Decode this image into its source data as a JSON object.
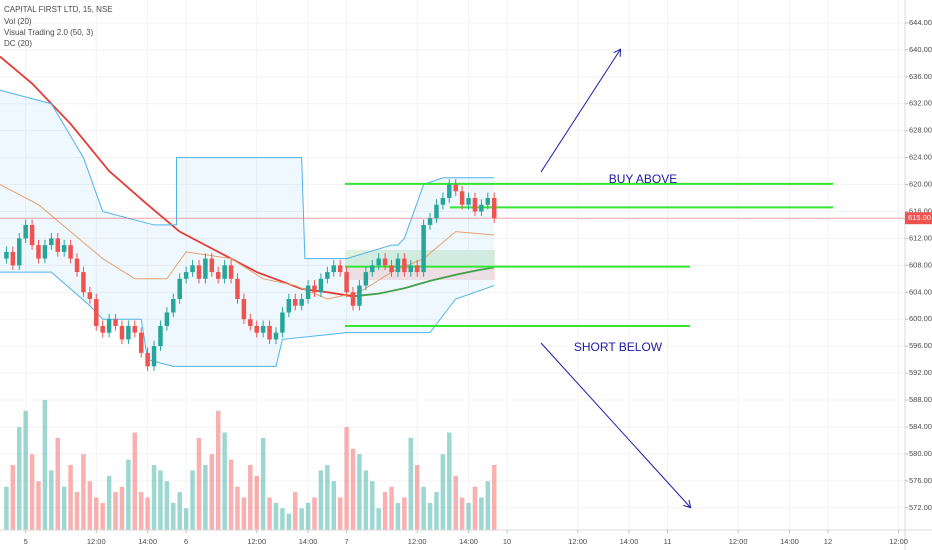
{
  "chart_data": {
    "type": "candlestick",
    "title": "CAPITAL FIRST LTD, 15, NSE",
    "indicators": [
      "Vol (20)",
      "Visual Trading 2.0 (50, 3)",
      "DC (20)"
    ],
    "annotations": [
      "BUY ABOVE",
      "SHORT BELOW"
    ],
    "up_color": "#26a69a",
    "down_color": "#ef5350",
    "ylim": [
      568.7,
      647.4
    ],
    "yticks": [
      {
        "value": 572,
        "label": "572.00"
      },
      {
        "value": 576,
        "label": "576.00"
      },
      {
        "value": 580,
        "label": "580.00"
      },
      {
        "value": 584,
        "label": "584.00"
      },
      {
        "value": 588,
        "label": "588.00"
      },
      {
        "value": 592,
        "label": "592.00"
      },
      {
        "value": 596,
        "label": "596.00"
      },
      {
        "value": 600,
        "label": "600.00"
      },
      {
        "value": 604,
        "label": "604.00"
      },
      {
        "value": 608,
        "label": "608.00"
      },
      {
        "value": 612,
        "label": "612.00"
      },
      {
        "value": 616,
        "label": "616.00"
      },
      {
        "value": 620,
        "label": "620.00"
      },
      {
        "value": 624,
        "label": "624.00"
      },
      {
        "value": 628,
        "label": "628.00"
      },
      {
        "value": 632,
        "label": "632.00"
      },
      {
        "value": 636,
        "label": "636.00"
      },
      {
        "value": 640,
        "label": "640.00"
      },
      {
        "value": 644,
        "label": "644.00"
      }
    ],
    "xlim": [
      -1,
      140
    ],
    "xticks": [
      {
        "value": 3,
        "label": "5"
      },
      {
        "value": 14,
        "label": "12:00"
      },
      {
        "value": 22,
        "label": "14:00"
      },
      {
        "value": 28,
        "label": "6"
      },
      {
        "value": 39,
        "label": "12:00"
      },
      {
        "value": 47,
        "label": "14:00"
      },
      {
        "value": 53,
        "label": "7"
      },
      {
        "value": 64,
        "label": "12:00"
      },
      {
        "value": 72,
        "label": "14:00"
      },
      {
        "value": 78,
        "label": "10"
      },
      {
        "value": 89,
        "label": "12:00"
      },
      {
        "value": 97,
        "label": "14:00"
      },
      {
        "value": 103,
        "label": "11"
      },
      {
        "value": 114,
        "label": "12:00"
      },
      {
        "value": 122,
        "label": "14:00"
      },
      {
        "value": 128,
        "label": "12"
      },
      {
        "value": 139,
        "label": "12:00"
      }
    ],
    "candles": [
      [
        609,
        610.8,
        608.3,
        610
      ],
      [
        610,
        610.8,
        607.3,
        608
      ],
      [
        608,
        612.8,
        607.3,
        612
      ],
      [
        612,
        614.8,
        611.3,
        614
      ],
      [
        614,
        614.8,
        610.3,
        611
      ],
      [
        611,
        611.8,
        608.3,
        609
      ],
      [
        609,
        611.8,
        608.3,
        611
      ],
      [
        611,
        612.8,
        610.3,
        612
      ],
      [
        612,
        612.8,
        609.3,
        610
      ],
      [
        610,
        611.8,
        609.3,
        611
      ],
      [
        611,
        611.8,
        608.3,
        609
      ],
      [
        609,
        609.8,
        606.3,
        607
      ],
      [
        607,
        607.8,
        603.3,
        604
      ],
      [
        604,
        604.8,
        602.3,
        603
      ],
      [
        603,
        603.8,
        598.3,
        599
      ],
      [
        599,
        599.8,
        597.3,
        598
      ],
      [
        598,
        600.8,
        597.3,
        600
      ],
      [
        600,
        600.8,
        598.3,
        599
      ],
      [
        599,
        599.8,
        596.3,
        597
      ],
      [
        597,
        599.8,
        596.3,
        599
      ],
      [
        599,
        599.8,
        597.3,
        598
      ],
      [
        598,
        598.8,
        594.3,
        595
      ],
      [
        595,
        595.8,
        592.3,
        593
      ],
      [
        593,
        596.8,
        592.3,
        596
      ],
      [
        596,
        599.8,
        595.3,
        599
      ],
      [
        599,
        601.8,
        598.3,
        601
      ],
      [
        601,
        603.8,
        600.3,
        603
      ],
      [
        603,
        606.8,
        602.3,
        606
      ],
      [
        606,
        607.8,
        605.3,
        607
      ],
      [
        607,
        608.8,
        606.3,
        608
      ],
      [
        608,
        608.8,
        605.3,
        606
      ],
      [
        606,
        609.8,
        605.3,
        609
      ],
      [
        609,
        609.8,
        606.3,
        607
      ],
      [
        607,
        607.8,
        605.3,
        606
      ],
      [
        606,
        608.8,
        605.3,
        608
      ],
      [
        608,
        608.8,
        605.3,
        606
      ],
      [
        606,
        606.8,
        602.3,
        603
      ],
      [
        603,
        603.8,
        599.3,
        600
      ],
      [
        600,
        600.8,
        598.3,
        599
      ],
      [
        599,
        599.8,
        597.3,
        598
      ],
      [
        598,
        599.8,
        597.3,
        599
      ],
      [
        599,
        599.8,
        596.3,
        597
      ],
      [
        597,
        598.8,
        596.3,
        598
      ],
      [
        598,
        601.8,
        597.3,
        601
      ],
      [
        601,
        603.8,
        600.3,
        603
      ],
      [
        603,
        603.8,
        601.3,
        602
      ],
      [
        602,
        603.8,
        601.3,
        603
      ],
      [
        603,
        605.8,
        602.3,
        605
      ],
      [
        605,
        605.8,
        603.3,
        604
      ],
      [
        604,
        606.8,
        603.3,
        606
      ],
      [
        606,
        607.8,
        605.3,
        607
      ],
      [
        607,
        608.8,
        606.3,
        608
      ],
      [
        608,
        608.8,
        606.3,
        607
      ],
      [
        607,
        607.8,
        603.3,
        604
      ],
      [
        604,
        604.8,
        601.3,
        602
      ],
      [
        602,
        605.8,
        601.3,
        605
      ],
      [
        605,
        607.8,
        604.3,
        607
      ],
      [
        607,
        608.8,
        606.3,
        608
      ],
      [
        608,
        609.8,
        607.3,
        609
      ],
      [
        609,
        609.8,
        607.3,
        608
      ],
      [
        608,
        608.8,
        606.3,
        607
      ],
      [
        607,
        609.8,
        606.3,
        609
      ],
      [
        609,
        609.8,
        606.3,
        607
      ],
      [
        607,
        608.8,
        606.3,
        608
      ],
      [
        608,
        608.8,
        606.3,
        607
      ],
      [
        607,
        614.8,
        606.3,
        614
      ],
      [
        614,
        615.8,
        613.3,
        615
      ],
      [
        615,
        617.8,
        614.3,
        617
      ],
      [
        617,
        618.8,
        616.3,
        618
      ],
      [
        618,
        620.8,
        617.3,
        620
      ],
      [
        620,
        620.8,
        618.3,
        619
      ],
      [
        619,
        619.8,
        616.3,
        617
      ],
      [
        617,
        618.8,
        616.3,
        618
      ],
      [
        618,
        618.8,
        615.3,
        616
      ],
      [
        616,
        617.8,
        615.3,
        617
      ],
      [
        617,
        618.8,
        616.3,
        618
      ],
      [
        618,
        618.8,
        614.3,
        615
      ]
    ],
    "volumes": [
      40,
      60,
      95,
      110,
      70,
      45,
      120,
      55,
      85,
      40,
      60,
      35,
      70,
      45,
      30,
      25,
      50,
      35,
      40,
      65,
      90,
      35,
      30,
      60,
      55,
      45,
      25,
      35,
      20,
      55,
      85,
      60,
      70,
      110,
      90,
      65,
      40,
      30,
      60,
      50,
      85,
      30,
      25,
      20,
      15,
      35,
      20,
      25,
      30,
      55,
      60,
      45,
      30,
      95,
      75,
      70,
      55,
      45,
      20,
      35,
      40,
      25,
      30,
      85,
      60,
      40,
      25,
      35,
      70,
      90,
      50,
      30,
      25,
      40,
      30,
      45,
      60
    ],
    "lines": [
      {
        "color": "#e53935",
        "x": [
          -1,
          4,
          10,
          16,
          22,
          27,
          33,
          39,
          46,
          50,
          54
        ],
        "values": [
          639,
          635,
          629,
          622,
          617,
          613,
          610,
          607,
          604.5,
          604,
          603.4
        ]
      },
      {
        "color": "#43a047",
        "x": [
          54,
          58,
          62,
          66,
          70,
          73,
          76
        ],
        "values": [
          603.4,
          603.8,
          604.6,
          605.7,
          606.6,
          607.2,
          607.7
        ]
      },
      {
        "color": "#e8a06a",
        "x": [
          -1,
          5,
          10,
          15,
          20,
          25,
          28,
          35,
          40,
          45,
          50,
          55,
          60,
          65,
          70,
          76
        ],
        "values": [
          620,
          617,
          613,
          609,
          606,
          606,
          610,
          609,
          606,
          605,
          603,
          604,
          607,
          609,
          613,
          612.5
        ]
      },
      {
        "color": "#4fb3e8",
        "x": [
          -1,
          7,
          12,
          15,
          23,
          26.5,
          26.5,
          46,
          46.5,
          53,
          60,
          61,
          62,
          65,
          68,
          76
        ],
        "values": [
          634,
          632,
          624,
          616,
          614,
          614,
          624,
          624,
          609,
          609,
          611,
          611,
          612,
          620,
          621,
          621
        ]
      },
      {
        "color": "#4fb3e8",
        "x": [
          -1,
          7,
          13,
          15,
          21,
          22,
          26,
          42,
          43,
          53,
          66,
          70,
          76
        ],
        "values": [
          607,
          607,
          602,
          600,
          600,
          594,
          593,
          593,
          597,
          598,
          598,
          603,
          605
        ]
      }
    ],
    "levels": [
      620.1,
      616.6,
      607.8,
      599
    ],
    "level_color": "#32e632",
    "last_price": {
      "value": 615,
      "label": "615.00"
    }
  }
}
